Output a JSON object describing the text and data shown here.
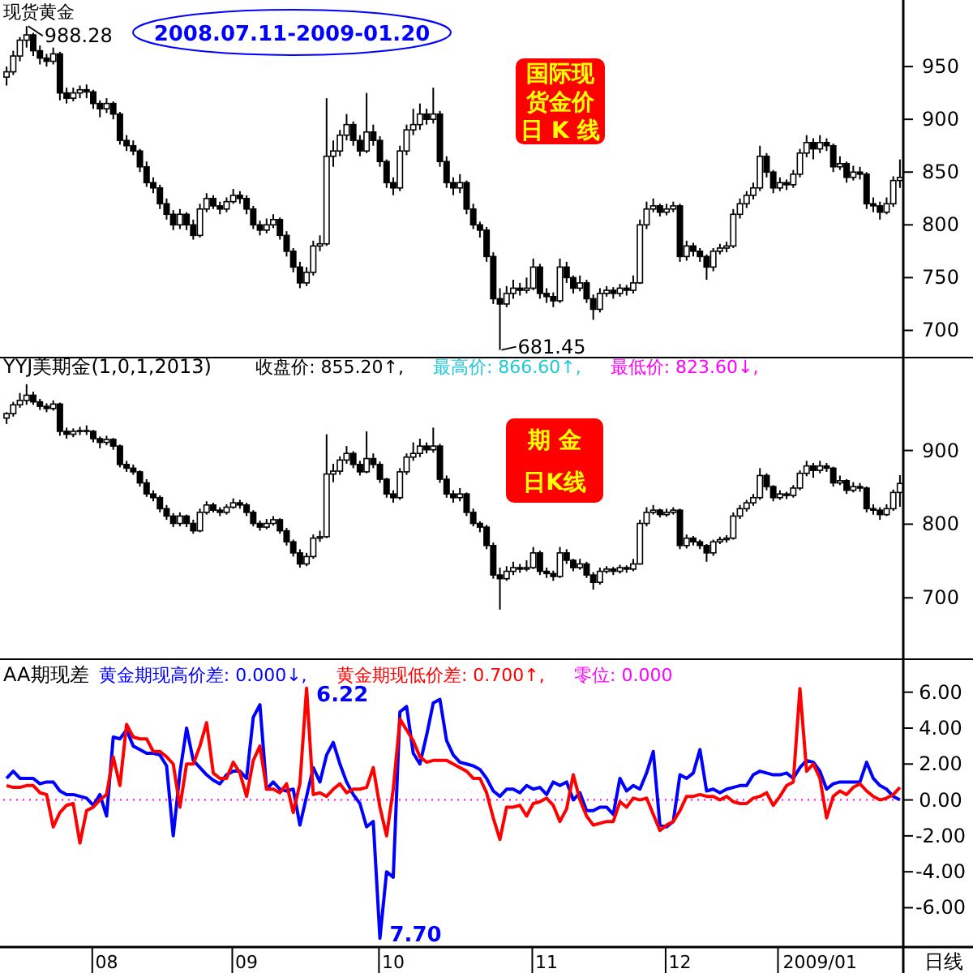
{
  "chart_data": [
    {
      "type": "candlestick",
      "title": "现货黄金",
      "tick_labels": "y",
      "ylim": [
        675,
        1010
      ],
      "yticks": [
        700,
        750,
        800,
        850,
        900,
        950
      ],
      "categories": [
        null,
        null,
        null,
        null,
        null,
        null,
        null,
        null,
        null,
        null,
        null,
        null,
        null,
        null,
        null,
        "08",
        null,
        null,
        null,
        null,
        null,
        null,
        null,
        null,
        null,
        null,
        null,
        null,
        null,
        null,
        null,
        null,
        null,
        null,
        null,
        null,
        "09",
        null,
        null,
        null,
        null,
        null,
        null,
        null,
        null,
        null,
        null,
        null,
        null,
        null,
        null,
        null,
        null,
        null,
        null,
        null,
        null,
        null,
        "10",
        null,
        null,
        null,
        null,
        null,
        null,
        null,
        null,
        null,
        null,
        null,
        null,
        null,
        null,
        null,
        null,
        null,
        null,
        null,
        null,
        null,
        null,
        "11",
        null,
        null,
        null,
        null,
        null,
        null,
        null,
        null,
        null,
        null,
        null,
        null,
        null,
        null,
        null,
        null,
        null,
        null,
        null,
        "12",
        null,
        null,
        null,
        null,
        null,
        null,
        null,
        null,
        null,
        null,
        null,
        null,
        null,
        null,
        null,
        null,
        null,
        null,
        null,
        null,
        "2009/01",
        null,
        null,
        null,
        null,
        null,
        null,
        null,
        null,
        null,
        null,
        null,
        null
      ],
      "ohlc": [
        [
          940,
          950,
          932,
          945
        ],
        [
          945,
          965,
          942,
          960
        ],
        [
          960,
          978,
          955,
          975
        ],
        [
          975,
          988.28,
          968,
          980
        ],
        [
          980,
          982,
          960,
          965
        ],
        [
          965,
          970,
          952,
          958
        ],
        [
          958,
          962,
          950,
          955
        ],
        [
          955,
          968,
          952,
          962
        ],
        [
          962,
          964,
          918,
          925
        ],
        [
          925,
          930,
          915,
          920
        ],
        [
          920,
          930,
          917,
          925
        ],
        [
          925,
          932,
          920,
          928
        ],
        [
          928,
          933,
          920,
          926
        ],
        [
          926,
          928,
          910,
          915
        ],
        [
          915,
          918,
          902,
          910
        ],
        [
          910,
          920,
          906,
          915
        ],
        [
          915,
          917,
          900,
          905
        ],
        [
          905,
          907,
          876,
          880
        ],
        [
          880,
          885,
          870,
          875
        ],
        [
          875,
          880,
          866,
          870
        ],
        [
          870,
          872,
          850,
          855
        ],
        [
          855,
          860,
          836,
          840
        ],
        [
          840,
          845,
          830,
          835
        ],
        [
          835,
          838,
          815,
          820
        ],
        [
          820,
          825,
          805,
          810
        ],
        [
          810,
          814,
          795,
          800
        ],
        [
          800,
          815,
          796,
          810
        ],
        [
          810,
          812,
          795,
          800
        ],
        [
          800,
          805,
          786,
          790
        ],
        [
          790,
          820,
          788,
          815
        ],
        [
          815,
          830,
          812,
          825
        ],
        [
          825,
          828,
          815,
          818
        ],
        [
          818,
          822,
          810,
          815
        ],
        [
          815,
          826,
          812,
          822
        ],
        [
          822,
          834,
          820,
          828
        ],
        [
          828,
          832,
          820,
          825
        ],
        [
          825,
          828,
          810,
          815
        ],
        [
          815,
          818,
          796,
          800
        ],
        [
          800,
          804,
          790,
          795
        ],
        [
          795,
          806,
          792,
          800
        ],
        [
          800,
          810,
          797,
          805
        ],
        [
          805,
          807,
          786,
          790
        ],
        [
          790,
          794,
          770,
          775
        ],
        [
          775,
          778,
          755,
          760
        ],
        [
          760,
          765,
          740,
          745
        ],
        [
          745,
          760,
          742,
          755
        ],
        [
          755,
          785,
          752,
          780
        ],
        [
          780,
          790,
          775,
          782
        ],
        [
          782,
          920,
          780,
          865
        ],
        [
          865,
          880,
          855,
          870
        ],
        [
          870,
          890,
          865,
          885
        ],
        [
          885,
          905,
          880,
          895
        ],
        [
          895,
          898,
          875,
          880
        ],
        [
          880,
          885,
          865,
          870
        ],
        [
          870,
          925,
          868,
          888
        ],
        [
          888,
          895,
          875,
          880
        ],
        [
          880,
          884,
          855,
          860
        ],
        [
          860,
          862,
          835,
          840
        ],
        [
          840,
          845,
          828,
          835
        ],
        [
          835,
          875,
          832,
          870
        ],
        [
          870,
          895,
          866,
          890
        ],
        [
          890,
          910,
          885,
          895
        ],
        [
          895,
          915,
          890,
          905
        ],
        [
          905,
          910,
          895,
          900
        ],
        [
          900,
          930,
          896,
          905
        ],
        [
          905,
          908,
          855,
          860
        ],
        [
          860,
          865,
          835,
          840
        ],
        [
          840,
          845,
          828,
          835
        ],
        [
          835,
          848,
          830,
          840
        ],
        [
          840,
          842,
          810,
          815
        ],
        [
          815,
          820,
          796,
          800
        ],
        [
          800,
          803,
          788,
          795
        ],
        [
          795,
          798,
          765,
          770
        ],
        [
          770,
          774,
          725,
          730
        ],
        [
          730,
          740,
          681.45,
          725
        ],
        [
          725,
          742,
          722,
          735
        ],
        [
          735,
          748,
          730,
          740
        ],
        [
          740,
          745,
          733,
          738
        ],
        [
          738,
          750,
          735,
          740
        ],
        [
          740,
          768,
          738,
          760
        ],
        [
          760,
          763,
          730,
          735
        ],
        [
          735,
          740,
          726,
          732
        ],
        [
          732,
          736,
          722,
          728
        ],
        [
          728,
          768,
          726,
          760
        ],
        [
          760,
          765,
          745,
          750
        ],
        [
          750,
          752,
          735,
          740
        ],
        [
          740,
          752,
          737,
          745
        ],
        [
          745,
          748,
          726,
          730
        ],
        [
          730,
          734,
          710,
          720
        ],
        [
          720,
          740,
          717,
          735
        ],
        [
          735,
          742,
          732,
          738
        ],
        [
          738,
          741,
          730,
          735
        ],
        [
          735,
          744,
          732,
          740
        ],
        [
          740,
          743,
          733,
          738
        ],
        [
          738,
          752,
          735,
          745
        ],
        [
          745,
          805,
          744,
          800
        ],
        [
          800,
          822,
          796,
          815
        ],
        [
          815,
          825,
          812,
          818
        ],
        [
          818,
          820,
          808,
          812
        ],
        [
          812,
          820,
          809,
          815
        ],
        [
          815,
          822,
          812,
          818
        ],
        [
          818,
          820,
          765,
          770
        ],
        [
          770,
          785,
          766,
          780
        ],
        [
          780,
          783,
          770,
          775
        ],
        [
          775,
          778,
          765,
          770
        ],
        [
          770,
          772,
          748,
          760
        ],
        [
          760,
          778,
          756,
          775
        ],
        [
          775,
          782,
          772,
          778
        ],
        [
          778,
          784,
          774,
          780
        ],
        [
          780,
          815,
          778,
          810
        ],
        [
          810,
          825,
          806,
          820
        ],
        [
          820,
          832,
          816,
          828
        ],
        [
          828,
          840,
          824,
          835
        ],
        [
          835,
          875,
          832,
          865
        ],
        [
          865,
          868,
          845,
          850
        ],
        [
          850,
          852,
          830,
          835
        ],
        [
          835,
          845,
          832,
          840
        ],
        [
          840,
          843,
          833,
          838
        ],
        [
          838,
          852,
          835,
          848
        ],
        [
          848,
          872,
          845,
          868
        ],
        [
          868,
          885,
          864,
          878
        ],
        [
          878,
          882,
          862,
          872
        ],
        [
          872,
          885,
          868,
          878
        ],
        [
          878,
          882,
          870,
          875
        ],
        [
          875,
          877,
          850,
          855
        ],
        [
          855,
          865,
          852,
          858
        ],
        [
          858,
          860,
          840,
          845
        ],
        [
          845,
          856,
          842,
          850
        ],
        [
          850,
          855,
          843,
          848
        ],
        [
          848,
          850,
          815,
          820
        ],
        [
          820,
          826,
          812,
          818
        ],
        [
          818,
          822,
          805,
          812
        ],
        [
          812,
          826,
          810,
          820
        ],
        [
          820,
          846,
          817,
          842
        ],
        [
          842,
          862,
          835,
          845
        ]
      ],
      "annotations": [
        "988.28",
        "681.45",
        "2008.07.11-2009-01.20",
        "国际现",
        "货金价",
        "日 K 线"
      ]
    },
    {
      "type": "candlestick",
      "title": "YYJ美期金(1,0,1,2013)",
      "tick_labels": "y",
      "ylim": [
        620,
        1025
      ],
      "yticks": [
        700,
        800,
        900
      ],
      "categories": [
        null,
        null,
        null,
        null,
        null,
        null,
        null,
        null,
        null,
        null,
        null,
        null,
        null,
        null,
        null,
        "08",
        null,
        null,
        null,
        null,
        null,
        null,
        null,
        null,
        null,
        null,
        null,
        null,
        null,
        null,
        null,
        null,
        null,
        null,
        null,
        null,
        "09",
        null,
        null,
        null,
        null,
        null,
        null,
        null,
        null,
        null,
        null,
        null,
        null,
        null,
        null,
        null,
        null,
        null,
        null,
        null,
        null,
        null,
        "10",
        null,
        null,
        null,
        null,
        null,
        null,
        null,
        null,
        null,
        null,
        null,
        null,
        null,
        null,
        null,
        null,
        null,
        null,
        null,
        null,
        null,
        null,
        "11",
        null,
        null,
        null,
        null,
        null,
        null,
        null,
        null,
        null,
        null,
        null,
        null,
        null,
        null,
        null,
        null,
        null,
        null,
        null,
        "12",
        null,
        null,
        null,
        null,
        null,
        null,
        null,
        null,
        null,
        null,
        null,
        null,
        null,
        null,
        null,
        null,
        null,
        null,
        null,
        null,
        "2009/01",
        null,
        null,
        null,
        null,
        null,
        null,
        null,
        null,
        null,
        null,
        null,
        null
      ],
      "ohlc": [
        [
          944,
          952,
          936,
          950
        ],
        [
          950,
          966,
          946,
          962
        ],
        [
          962,
          978,
          958,
          968
        ],
        [
          968,
          990,
          962,
          975
        ],
        [
          975,
          980,
          962,
          966
        ],
        [
          966,
          970,
          955,
          960
        ],
        [
          960,
          964,
          952,
          957
        ],
        [
          957,
          968,
          954,
          963
        ],
        [
          963,
          965,
          920,
          926
        ],
        [
          926,
          931,
          916,
          922
        ],
        [
          922,
          930,
          918,
          926
        ],
        [
          926,
          932,
          921,
          927
        ],
        [
          927,
          934,
          921,
          926
        ],
        [
          926,
          928,
          911,
          916
        ],
        [
          916,
          919,
          903,
          911
        ],
        [
          911,
          920,
          907,
          915
        ],
        [
          915,
          917,
          901,
          906
        ],
        [
          906,
          908,
          877,
          881
        ],
        [
          881,
          886,
          871,
          876
        ],
        [
          876,
          881,
          867,
          871
        ],
        [
          871,
          873,
          851,
          856
        ],
        [
          856,
          861,
          837,
          841
        ],
        [
          841,
          846,
          831,
          836
        ],
        [
          836,
          839,
          816,
          821
        ],
        [
          821,
          826,
          806,
          811
        ],
        [
          811,
          815,
          796,
          801
        ],
        [
          801,
          816,
          797,
          811
        ],
        [
          811,
          813,
          796,
          801
        ],
        [
          801,
          806,
          787,
          791
        ],
        [
          791,
          821,
          789,
          816
        ],
        [
          816,
          831,
          813,
          826
        ],
        [
          826,
          829,
          816,
          819
        ],
        [
          819,
          823,
          811,
          816
        ],
        [
          816,
          827,
          813,
          823
        ],
        [
          823,
          835,
          821,
          829
        ],
        [
          829,
          833,
          821,
          826
        ],
        [
          826,
          829,
          811,
          816
        ],
        [
          816,
          819,
          797,
          801
        ],
        [
          801,
          805,
          791,
          796
        ],
        [
          796,
          807,
          793,
          801
        ],
        [
          801,
          811,
          798,
          806
        ],
        [
          806,
          808,
          787,
          791
        ],
        [
          791,
          795,
          771,
          776
        ],
        [
          776,
          779,
          756,
          761
        ],
        [
          761,
          766,
          741,
          746
        ],
        [
          746,
          761,
          743,
          756
        ],
        [
          756,
          786,
          753,
          781
        ],
        [
          781,
          791,
          776,
          783
        ],
        [
          783,
          922,
          781,
          868
        ],
        [
          868,
          882,
          857,
          872
        ],
        [
          872,
          892,
          867,
          887
        ],
        [
          887,
          906,
          882,
          896
        ],
        [
          896,
          899,
          876,
          881
        ],
        [
          881,
          886,
          866,
          871
        ],
        [
          871,
          926,
          869,
          889
        ],
        [
          889,
          896,
          876,
          881
        ],
        [
          881,
          885,
          856,
          861
        ],
        [
          861,
          863,
          836,
          841
        ],
        [
          841,
          846,
          829,
          836
        ],
        [
          836,
          876,
          833,
          871
        ],
        [
          871,
          896,
          867,
          891
        ],
        [
          891,
          911,
          886,
          896
        ],
        [
          896,
          916,
          891,
          906
        ],
        [
          906,
          911,
          896,
          901
        ],
        [
          901,
          931,
          897,
          906
        ],
        [
          906,
          909,
          856,
          861
        ],
        [
          861,
          866,
          836,
          841
        ],
        [
          841,
          846,
          829,
          836
        ],
        [
          836,
          849,
          831,
          841
        ],
        [
          841,
          843,
          811,
          816
        ],
        [
          816,
          821,
          797,
          801
        ],
        [
          801,
          804,
          789,
          796
        ],
        [
          796,
          799,
          766,
          771
        ],
        [
          771,
          775,
          726,
          731
        ],
        [
          731,
          741,
          684,
          726
        ],
        [
          726,
          743,
          723,
          736
        ],
        [
          736,
          749,
          731,
          741
        ],
        [
          741,
          746,
          734,
          739
        ],
        [
          739,
          751,
          736,
          741
        ],
        [
          741,
          769,
          739,
          761
        ],
        [
          761,
          764,
          731,
          736
        ],
        [
          736,
          741,
          727,
          733
        ],
        [
          733,
          737,
          723,
          729
        ],
        [
          729,
          769,
          727,
          761
        ],
        [
          761,
          766,
          746,
          751
        ],
        [
          751,
          753,
          736,
          741
        ],
        [
          741,
          753,
          738,
          746
        ],
        [
          746,
          749,
          727,
          731
        ],
        [
          731,
          735,
          711,
          721
        ],
        [
          721,
          741,
          718,
          736
        ],
        [
          736,
          743,
          733,
          739
        ],
        [
          739,
          742,
          731,
          736
        ],
        [
          736,
          745,
          733,
          741
        ],
        [
          741,
          744,
          734,
          739
        ],
        [
          739,
          753,
          736,
          746
        ],
        [
          746,
          806,
          745,
          801
        ],
        [
          801,
          823,
          797,
          816
        ],
        [
          816,
          826,
          813,
          819
        ],
        [
          819,
          821,
          809,
          813
        ],
        [
          813,
          821,
          810,
          816
        ],
        [
          816,
          823,
          813,
          819
        ],
        [
          819,
          821,
          766,
          771
        ],
        [
          771,
          786,
          767,
          781
        ],
        [
          781,
          784,
          771,
          776
        ],
        [
          776,
          779,
          766,
          771
        ],
        [
          771,
          773,
          749,
          761
        ],
        [
          761,
          779,
          757,
          776
        ],
        [
          776,
          783,
          773,
          779
        ],
        [
          779,
          785,
          775,
          781
        ],
        [
          781,
          816,
          779,
          811
        ],
        [
          811,
          826,
          807,
          821
        ],
        [
          821,
          833,
          817,
          829
        ],
        [
          829,
          841,
          825,
          836
        ],
        [
          836,
          876,
          833,
          866
        ],
        [
          866,
          869,
          846,
          851
        ],
        [
          851,
          853,
          831,
          836
        ],
        [
          836,
          846,
          833,
          841
        ],
        [
          841,
          844,
          834,
          839
        ],
        [
          839,
          853,
          836,
          849
        ],
        [
          849,
          873,
          846,
          869
        ],
        [
          869,
          886,
          865,
          879
        ],
        [
          879,
          883,
          863,
          873
        ],
        [
          873,
          886,
          869,
          879
        ],
        [
          879,
          883,
          871,
          876
        ],
        [
          876,
          878,
          851,
          856
        ],
        [
          856,
          866,
          853,
          859
        ],
        [
          859,
          861,
          841,
          846
        ],
        [
          846,
          857,
          843,
          851
        ],
        [
          851,
          856,
          844,
          849
        ],
        [
          849,
          851,
          816,
          821
        ],
        [
          821,
          827,
          813,
          819
        ],
        [
          819,
          823,
          806,
          813
        ],
        [
          813,
          827,
          811,
          821
        ],
        [
          821,
          847,
          818,
          843
        ],
        [
          843,
          866.6,
          823.6,
          855.2
        ]
      ],
      "annotations": [
        "收盘价: 855.20↑,",
        "最高价: 866.60↑,",
        "最低价: 823.60↓,",
        "期 金",
        "日K线"
      ]
    },
    {
      "type": "line",
      "title": "AA期现差",
      "legend": "top left",
      "marker": "none",
      "line_style": "solid",
      "ylim": [
        -8.1,
        7.7
      ],
      "yticks": [
        {
          "value": -6,
          "label": "-6.00"
        },
        {
          "value": -4,
          "label": "-4.00"
        },
        {
          "value": -2,
          "label": "-2.00"
        },
        {
          "value": 0,
          "label": "0.00"
        },
        {
          "value": 2,
          "label": "2.00"
        },
        {
          "value": 4,
          "label": "4.00"
        },
        {
          "value": 6,
          "label": "6.00"
        }
      ],
      "categories": [
        null,
        null,
        null,
        null,
        null,
        null,
        null,
        null,
        null,
        null,
        null,
        null,
        null,
        null,
        null,
        "08",
        null,
        null,
        null,
        null,
        null,
        null,
        null,
        null,
        null,
        null,
        null,
        null,
        null,
        null,
        null,
        null,
        null,
        null,
        null,
        null,
        "09",
        null,
        null,
        null,
        null,
        null,
        null,
        null,
        null,
        null,
        null,
        null,
        null,
        null,
        null,
        null,
        null,
        null,
        null,
        null,
        null,
        null,
        "10",
        null,
        null,
        null,
        null,
        null,
        null,
        null,
        null,
        null,
        null,
        null,
        null,
        null,
        null,
        null,
        null,
        null,
        null,
        null,
        null,
        null,
        null,
        "11",
        null,
        null,
        null,
        null,
        null,
        null,
        null,
        null,
        null,
        null,
        null,
        null,
        null,
        null,
        null,
        null,
        null,
        null,
        null,
        "12",
        null,
        null,
        null,
        null,
        null,
        null,
        null,
        null,
        null,
        null,
        null,
        null,
        null,
        null,
        null,
        null,
        null,
        null,
        null,
        null,
        "2009/01",
        null,
        null,
        null,
        null,
        null,
        null,
        null,
        null,
        null,
        null,
        null,
        null
      ],
      "series": [
        {
          "name": "黄金期现高价差: 0.000↓,",
          "color": "#0000ff",
          "values": [
            1.2,
            1.6,
            1.2,
            1.2,
            1.2,
            0.9,
            1.0,
            1.0,
            0.5,
            0.3,
            0.3,
            0.2,
            0.1,
            -0.3,
            0.3,
            -0.9,
            3.5,
            3.4,
            3.9,
            3.0,
            2.8,
            2.6,
            2.6,
            2.5,
            1.9,
            -2.0,
            1.5,
            4.0,
            2.2,
            1.8,
            1.4,
            1.1,
            0.9,
            1.4,
            1.6,
            1.6,
            1.2,
            4.6,
            5.3,
            0.6,
            1.0,
            0.6,
            0.5,
            0.6,
            -1.4,
            0.2,
            1.8,
            1.0,
            2.5,
            3.2,
            2.0,
            1.0,
            0.3,
            -0.2,
            -1.5,
            -1.2,
            -7.7,
            -4.0,
            -4.3,
            4.9,
            5.2,
            2.6,
            2.0,
            3.6,
            5.4,
            5.6,
            3.3,
            2.5,
            2.1,
            2.0,
            1.9,
            1.7,
            1.2,
            0.5,
            0.2,
            0.6,
            0.6,
            0.4,
            0.8,
            0.6,
            0.7,
            0.3,
            1.0,
            0.8,
            1.0,
            0.0,
            0.4,
            -0.6,
            -0.6,
            -0.4,
            -0.4,
            -0.8,
            1.2,
            0.5,
            0.8,
            0.6,
            1.5,
            2.7,
            -1.4,
            -1.5,
            -1.2,
            1.4,
            1.2,
            1.5,
            2.8,
            0.5,
            0.6,
            0.4,
            0.6,
            0.7,
            0.8,
            0.8,
            1.4,
            1.6,
            1.5,
            1.4,
            1.4,
            1.5,
            1.2,
            1.8,
            2.2,
            2.1,
            1.6,
            0.6,
            0.9,
            1.0,
            1.0,
            1.0,
            1.0,
            2.1,
            1.2,
            0.8,
            0.6,
            0.2,
            0.0
          ]
        },
        {
          "name": "黄金期现低价差: 0.700↑,",
          "color": "#ff0000",
          "values": [
            0.8,
            0.7,
            0.7,
            0.8,
            0.8,
            0.4,
            0.3,
            -1.5,
            -0.7,
            -0.3,
            -0.2,
            -2.4,
            -0.6,
            -0.4,
            0.0,
            0.3,
            2.4,
            0.8,
            4.2,
            3.5,
            3.4,
            3.4,
            2.7,
            2.7,
            2.4,
            2.0,
            -0.4,
            2.0,
            2.0,
            3.0,
            4.3,
            1.5,
            1.2,
            1.2,
            2.1,
            1.5,
            0.2,
            2.2,
            3.0,
            0.6,
            0.6,
            0.4,
            0.9,
            -0.7,
            0.9,
            6.22,
            0.3,
            0.4,
            0.2,
            0.6,
            0.9,
            0.4,
            0.6,
            0.6,
            0.7,
            1.8,
            -0.4,
            -2.0,
            0.6,
            4.5,
            3.9,
            3.3,
            2.4,
            2.1,
            2.2,
            2.2,
            2.2,
            2.0,
            1.8,
            1.6,
            1.2,
            1.2,
            0.4,
            -1.0,
            -2.2,
            -0.4,
            -0.4,
            -0.3,
            -0.9,
            -0.2,
            -0.1,
            0.1,
            -0.3,
            -1.2,
            -0.5,
            1.4,
            0.0,
            -0.9,
            -1.4,
            -1.3,
            -1.2,
            -1.2,
            -0.1,
            -0.4,
            0.1,
            0.0,
            0.1,
            -0.8,
            -1.7,
            -1.4,
            -1.2,
            -0.6,
            0.2,
            0.2,
            0.3,
            0.2,
            0.2,
            0.0,
            0.2,
            -0.1,
            -0.2,
            -0.2,
            0.1,
            0.2,
            0.4,
            -0.3,
            0.2,
            0.8,
            1.0,
            6.2,
            1.6,
            2.0,
            1.2,
            -1.0,
            0.2,
            0.5,
            0.3,
            0.7,
            0.9,
            0.5,
            0.2,
            0.0,
            0.1,
            0.3,
            0.7
          ]
        }
      ],
      "ref_lines": [
        {
          "axis": "y",
          "value": 0,
          "label": "零位: 0.000",
          "color": "#ff00ff",
          "line_style": "dotted"
        }
      ],
      "annotations": [
        "6.22",
        "7.70",
        "日线"
      ]
    }
  ]
}
